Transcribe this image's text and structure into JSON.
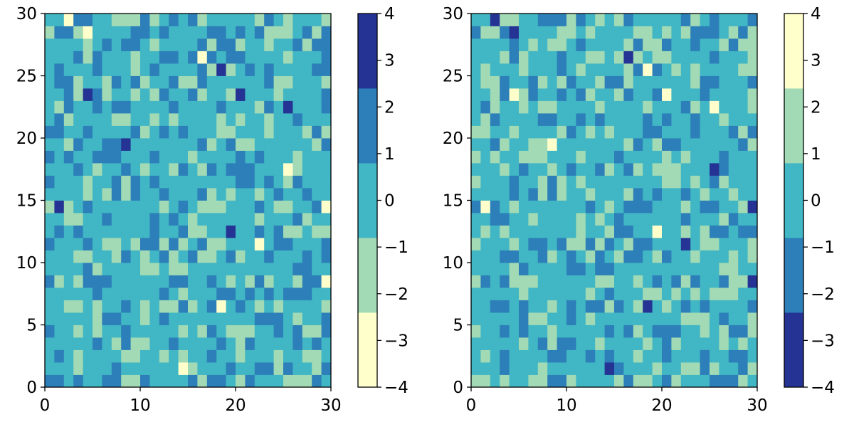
{
  "chart_data": [
    {
      "type": "heatmap",
      "title": "",
      "xlabel": "",
      "ylabel": "",
      "xlim": [
        0,
        30
      ],
      "ylim": [
        0,
        30
      ],
      "xticks": [
        "0",
        "10",
        "20",
        "30"
      ],
      "yticks": [
        "0",
        "5",
        "10",
        "15",
        "20",
        "25",
        "30"
      ],
      "colorbar": {
        "range": [
          -4,
          4
        ],
        "boundaries": [
          -4,
          -2.4,
          -0.8,
          0.8,
          2.4,
          4
        ],
        "colors": [
          "#ffffcc",
          "#a1dab4",
          "#41b6c4",
          "#2c7fb8",
          "#253494"
        ],
        "ticks": [
          "−4",
          "−3",
          "−2",
          "−1",
          "0",
          "1",
          "2",
          "3",
          "4"
        ]
      }
    },
    {
      "type": "heatmap",
      "title": "",
      "xlabel": "",
      "ylabel": "",
      "xlim": [
        0,
        30
      ],
      "ylim": [
        0,
        30
      ],
      "xticks": [
        "0",
        "10",
        "20",
        "30"
      ],
      "yticks": [
        "0",
        "5",
        "10",
        "15",
        "20",
        "25",
        "30"
      ],
      "colorbar": {
        "range": [
          -4,
          4
        ],
        "boundaries": [
          -4,
          -2.4,
          -0.8,
          0.8,
          2.4,
          4
        ],
        "colors": [
          "#253494",
          "#2c7fb8",
          "#41b6c4",
          "#a1dab4",
          "#ffffcc"
        ],
        "ticks": [
          "−4",
          "−3",
          "−2",
          "−1",
          "0",
          "1",
          "2",
          "3",
          "4"
        ]
      }
    }
  ],
  "z": [
    [
      1.6,
      1.6,
      0,
      1.6,
      0,
      0,
      1.6,
      1.6,
      -1.6,
      -1.6,
      1.6,
      0,
      0,
      0,
      0,
      1.6,
      -1.6,
      1.6,
      1.6,
      0,
      -1.6,
      1.6,
      0,
      0,
      0,
      -1.6,
      -1.6,
      -1.6,
      1.6,
      0
    ],
    [
      0,
      0,
      0,
      -1.6,
      0,
      0,
      0,
      1.6,
      0,
      0,
      0,
      0,
      0,
      0,
      -3.2,
      -1.6,
      0,
      0,
      0,
      1.6,
      0,
      0,
      1.6,
      1.6,
      -1.6,
      1.6,
      0,
      0,
      -1.6,
      1.6
    ],
    [
      0,
      1.6,
      0,
      -1.6,
      0,
      0,
      0,
      0,
      -1.6,
      -1.6,
      0,
      0,
      -1.6,
      0,
      -1.6,
      0,
      0,
      1.6,
      0,
      0,
      -1.6,
      0,
      0,
      0,
      -1.6,
      0,
      0,
      -1.6,
      -1.6,
      0
    ],
    [
      0,
      0,
      0,
      0,
      0,
      1.6,
      0,
      -1.6,
      1.6,
      -1.6,
      -1.6,
      0,
      0,
      1.6,
      0,
      0,
      0,
      0,
      1.6,
      0,
      -1.6,
      1.6,
      0,
      0,
      0,
      0,
      1.6,
      0,
      1.6,
      0
    ],
    [
      1.6,
      0,
      0,
      -1.6,
      0,
      -1.6,
      0,
      0,
      1.6,
      0,
      0,
      0,
      0,
      0,
      -1.6,
      0,
      -1.6,
      1.6,
      0,
      -1.6,
      -1.6,
      -1.6,
      0,
      0,
      1.6,
      0,
      1.6,
      -1.6,
      -1.6,
      1.6
    ],
    [
      0,
      0,
      0,
      0,
      0,
      -1.6,
      1.6,
      1.6,
      0,
      0,
      -1.6,
      0,
      1.6,
      0,
      0,
      0,
      0,
      0,
      0,
      0,
      0,
      0,
      1.6,
      1.6,
      1.6,
      0,
      -1.6,
      0,
      0,
      1.6
    ],
    [
      0,
      0,
      -1.6,
      -1.6,
      0,
      -1.6,
      0,
      0,
      1.6,
      0,
      -1.6,
      0,
      -1.6,
      -1.6,
      1.6,
      -1.6,
      0,
      1.6,
      -3.2,
      0,
      1.6,
      0,
      -1.6,
      0,
      -1.6,
      0,
      0,
      0,
      0,
      -1.6
    ],
    [
      0,
      0,
      0,
      0,
      0,
      1.6,
      0,
      0,
      0,
      0,
      0,
      0,
      1.6,
      0,
      -1.6,
      0,
      0,
      0,
      1.6,
      1.6,
      0,
      1.6,
      0,
      1.6,
      0,
      1.6,
      1.6,
      1.6,
      0,
      0
    ],
    [
      1.6,
      -1.6,
      0,
      -1.6,
      1.6,
      1.6,
      1.6,
      0,
      0,
      0,
      0,
      0,
      0,
      1.6,
      1.6,
      0,
      0,
      1.6,
      0,
      -1.6,
      0,
      -1.6,
      1.6,
      -1.6,
      0,
      0,
      -1.6,
      1.6,
      1.6,
      -3.2
    ],
    [
      0,
      0,
      0,
      0,
      1.6,
      -1.6,
      0,
      0,
      0,
      0,
      -1.6,
      -1.6,
      0,
      -1.6,
      -1.6,
      0,
      0,
      0,
      0,
      0,
      0,
      0,
      0,
      0,
      0,
      0,
      1.6,
      1.6,
      0,
      0
    ],
    [
      0,
      0,
      0,
      -1.6,
      -1.6,
      0,
      0,
      -1.6,
      1.6,
      0,
      -1.6,
      0,
      1.6,
      -1.6,
      0,
      1.6,
      -1.6,
      -1.6,
      0,
      1.6,
      -1.6,
      0,
      0,
      1.6,
      0,
      0,
      0,
      1.6,
      0,
      1.6
    ],
    [
      1.6,
      0,
      0,
      0,
      1.6,
      0,
      -1.6,
      -1.6,
      0,
      -1.6,
      1.6,
      1.6,
      -1.6,
      1.6,
      -1.6,
      0,
      1.6,
      -1.6,
      -1.6,
      0,
      0,
      0,
      -3.2,
      0,
      1.6,
      1.6,
      0,
      0,
      0,
      1.6
    ],
    [
      0,
      1.6,
      0,
      1.6,
      0,
      0,
      0,
      0,
      0,
      0,
      0,
      1.6,
      0,
      0,
      1.6,
      -1.6,
      -1.6,
      0,
      0,
      3.2,
      0,
      0,
      1.6,
      0,
      1.6,
      -1.6,
      -1.6,
      0,
      -1.6,
      -1.6
    ],
    [
      0,
      0,
      -1.6,
      -1.6,
      0,
      0,
      1.6,
      0,
      0,
      0,
      0,
      1.6,
      0,
      1.6,
      0,
      -1.6,
      0,
      0,
      0,
      0,
      0,
      0,
      -1.6,
      0,
      0,
      0,
      1.6,
      -1.6,
      0,
      0
    ],
    [
      -1.6,
      3.2,
      -1.6,
      0,
      1.6,
      0,
      0,
      0,
      0,
      0,
      0,
      0,
      -1.6,
      0,
      1.6,
      0,
      -1.6,
      -1.6,
      -1.6,
      0,
      0,
      0,
      1.6,
      0,
      -1.6,
      -1.6,
      0,
      0,
      1.6,
      -3.2
    ],
    [
      0,
      0,
      0,
      0,
      -1.6,
      0,
      -1.6,
      1.6,
      -1.6,
      1.6,
      0,
      0,
      1.6,
      0,
      0,
      0,
      1.6,
      -1.6,
      0,
      -1.6,
      0,
      0,
      -1.6,
      0,
      1.6,
      0,
      0,
      1.6,
      0,
      0
    ],
    [
      1.6,
      0,
      0,
      0,
      -1.6,
      0,
      0,
      1.6,
      -1.6,
      1.6,
      0,
      1.6,
      0,
      0,
      0,
      0,
      0,
      0,
      0,
      0,
      1.6,
      1.6,
      0,
      1.6,
      0,
      -1.6,
      1.6,
      0,
      0,
      0
    ],
    [
      0,
      0,
      0,
      1.6,
      0,
      -1.6,
      0,
      0,
      1.6,
      0,
      -1.6,
      0,
      0,
      -1.6,
      1.6,
      0,
      -1.6,
      1.6,
      0,
      1.6,
      1.6,
      1.6,
      0,
      0,
      0,
      -3.2,
      -1.6,
      0,
      0,
      0
    ],
    [
      1.6,
      0,
      1.6,
      0,
      0,
      1.6,
      1.6,
      1.6,
      0,
      0,
      0,
      1.6,
      0,
      0,
      0,
      -1.6,
      0,
      0,
      0,
      0,
      1.6,
      0,
      1.6,
      0,
      0,
      0,
      -1.6,
      0,
      0,
      0
    ],
    [
      0,
      0,
      -1.6,
      1.6,
      0,
      0,
      1.6,
      1.6,
      3.2,
      0,
      0,
      0,
      0,
      0,
      0,
      0,
      1.6,
      -1.6,
      0,
      1.6,
      -1.6,
      -1.6,
      0,
      0,
      0,
      0,
      0,
      0,
      -1.6,
      1.6
    ],
    [
      1.6,
      1.6,
      0,
      0,
      1.6,
      0,
      0,
      0,
      0,
      1.6,
      -1.6,
      0,
      1.6,
      0,
      1.6,
      0,
      0,
      0,
      -1.6,
      -1.6,
      0,
      0,
      0,
      -1.6,
      0,
      0,
      0,
      -1.6,
      1.6,
      -1.6
    ],
    [
      0,
      1.6,
      -1.6,
      0,
      0,
      0,
      0,
      -1.6,
      -1.6,
      0,
      0,
      -1.6,
      0,
      -1.6,
      0,
      0,
      0,
      0,
      -1.6,
      0,
      -1.6,
      0,
      0,
      -1.6,
      0,
      0,
      1.6,
      0,
      0,
      0
    ],
    [
      0,
      -1.6,
      1.6,
      0,
      0,
      1.6,
      0,
      1.6,
      1.6,
      0,
      0,
      0,
      0,
      1.6,
      0,
      0,
      0,
      0,
      1.6,
      0,
      0,
      0,
      -1.6,
      1.6,
      0,
      3.2,
      0,
      0,
      0,
      1.6
    ],
    [
      0,
      0,
      1.6,
      -1.6,
      3.2,
      1.6,
      -1.6,
      0,
      0,
      -1.6,
      0,
      -1.6,
      1.6,
      0,
      0,
      1.6,
      -1.6,
      0,
      0,
      -1.6,
      3.2,
      0,
      0,
      0,
      -1.6,
      0,
      0,
      0,
      0,
      1.6
    ],
    [
      0,
      1.6,
      1.6,
      -1.6,
      0,
      0,
      -1.6,
      1.6,
      0,
      1.6,
      -1.6,
      0,
      0,
      1.6,
      -1.6,
      -1.6,
      1.6,
      0,
      0,
      0,
      0,
      0,
      0,
      1.6,
      -1.6,
      -1.6,
      0,
      0,
      0,
      -1.6
    ],
    [
      0,
      1.6,
      0,
      0,
      0,
      1.6,
      0,
      0,
      0,
      -1.6,
      0,
      1.6,
      0,
      0,
      0,
      0,
      1.6,
      -1.6,
      3.2,
      -1.6,
      0,
      1.6,
      0,
      1.6,
      0,
      0,
      0,
      0,
      1.6,
      1.6
    ],
    [
      0,
      0,
      0,
      1.6,
      -1.6,
      1.6,
      0,
      0,
      0,
      -1.6,
      0,
      0,
      1.6,
      1.6,
      0,
      1.6,
      -3.2,
      1.6,
      0,
      1.6,
      1.6,
      0,
      0,
      0,
      0,
      -1.6,
      0,
      0,
      0,
      1.6
    ],
    [
      0,
      0,
      0,
      0,
      -1.6,
      0,
      1.6,
      0,
      1.6,
      1.6,
      0,
      -1.6,
      0,
      0,
      0,
      0,
      1.6,
      -1.6,
      1.6,
      1.6,
      -1.6,
      0,
      0,
      -1.6,
      0,
      0,
      1.6,
      -1.6,
      1.6,
      1.6
    ],
    [
      -1.6,
      1.6,
      1.6,
      -1.6,
      -3.2,
      0,
      0,
      0,
      0,
      1.6,
      1.6,
      0,
      1.6,
      0,
      0,
      0,
      0,
      1.6,
      1.6,
      0,
      1.6,
      0,
      1.6,
      -1.6,
      -1.6,
      -1.6,
      0,
      1.6,
      -1.6,
      1.6
    ],
    [
      0,
      0,
      -3.2,
      1.6,
      1.6,
      0,
      0,
      -1.6,
      -1.6,
      -1.6,
      1.6,
      -1.6,
      0,
      1.6,
      0,
      1.6,
      -1.6,
      0,
      0,
      0,
      0,
      0,
      -1.6,
      1.6,
      0,
      -1.6,
      0,
      0,
      0,
      -1.6
    ]
  ]
}
